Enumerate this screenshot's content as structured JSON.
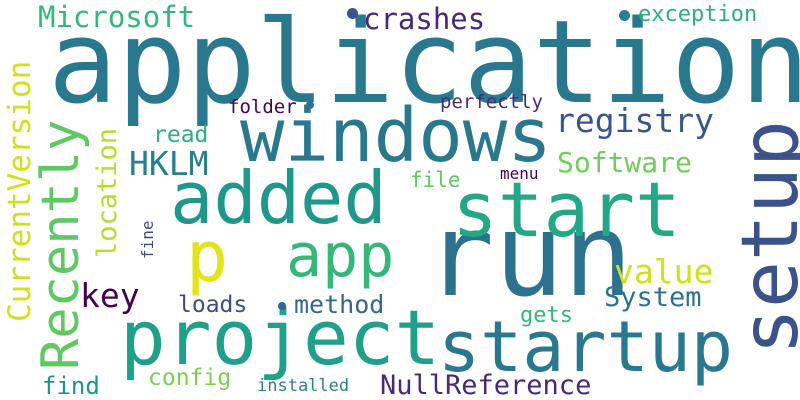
{
  "words": [
    {
      "key": "application",
      "text": "application",
      "color": "#2a788e"
    },
    {
      "key": "windows",
      "text": "windows",
      "color": "#2a788e"
    },
    {
      "key": "run",
      "text": "run",
      "color": "#2c728e"
    },
    {
      "key": "setup",
      "text": "setup",
      "color": "#3b528b"
    },
    {
      "key": "start",
      "text": "start",
      "color": "#22a884"
    },
    {
      "key": "added",
      "text": "added",
      "color": "#1f988b"
    },
    {
      "key": "project",
      "text": "project",
      "color": "#1fa088"
    },
    {
      "key": "startup",
      "text": "startup",
      "color": "#2a788e"
    },
    {
      "key": "app",
      "text": "app",
      "color": "#35b779"
    },
    {
      "key": "p",
      "text": "p",
      "color": "#e2e418"
    },
    {
      "key": "recently",
      "text": "Recently",
      "color": "#5ec962"
    },
    {
      "key": "currentversion",
      "text": "CurrentVersion",
      "color": "#d0e11c"
    },
    {
      "key": "location",
      "text": "location",
      "color": "#b5de2b"
    },
    {
      "key": "microsoft",
      "text": "Microsoft",
      "color": "#35b779"
    },
    {
      "key": "crashes",
      "text": "crashes",
      "color": "#482878"
    },
    {
      "key": "exception",
      "text": "exception",
      "color": "#2ab07f"
    },
    {
      "key": "registry",
      "text": "registry",
      "color": "#39568c"
    },
    {
      "key": "software",
      "text": "Software",
      "color": "#6ece58"
    },
    {
      "key": "hklm",
      "text": "HKLM",
      "color": "#277f8e"
    },
    {
      "key": "read",
      "text": "read",
      "color": "#2ab07f"
    },
    {
      "key": "folder",
      "text": "folder",
      "color": "#440154"
    },
    {
      "key": "perfectly",
      "text": "perfectly",
      "color": "#472c7a"
    },
    {
      "key": "file",
      "text": "file",
      "color": "#5ec962"
    },
    {
      "key": "menu",
      "text": "menu",
      "color": "#440154"
    },
    {
      "key": "fine",
      "text": "fine",
      "color": "#3e4a89"
    },
    {
      "key": "value",
      "text": "value",
      "color": "#d0e11c"
    },
    {
      "key": "system",
      "text": "System",
      "color": "#2c728e"
    },
    {
      "key": "key",
      "text": "key",
      "color": "#440154"
    },
    {
      "key": "loads",
      "text": "loads",
      "color": "#3e4a89"
    },
    {
      "key": "method",
      "text": "method",
      "color": "#31688e"
    },
    {
      "key": "gets",
      "text": "gets",
      "color": "#35b779"
    },
    {
      "key": "find",
      "text": "find",
      "color": "#21918c"
    },
    {
      "key": "config",
      "text": "config",
      "color": "#7ad151"
    },
    {
      "key": "installed",
      "text": "installed",
      "color": "#26828e"
    },
    {
      "key": "nullreference",
      "text": "NullReference",
      "color": "#482878"
    }
  ],
  "dot_colors": [
    "#3b528b",
    "#26828e",
    "#2c728e",
    "#31688e"
  ]
}
